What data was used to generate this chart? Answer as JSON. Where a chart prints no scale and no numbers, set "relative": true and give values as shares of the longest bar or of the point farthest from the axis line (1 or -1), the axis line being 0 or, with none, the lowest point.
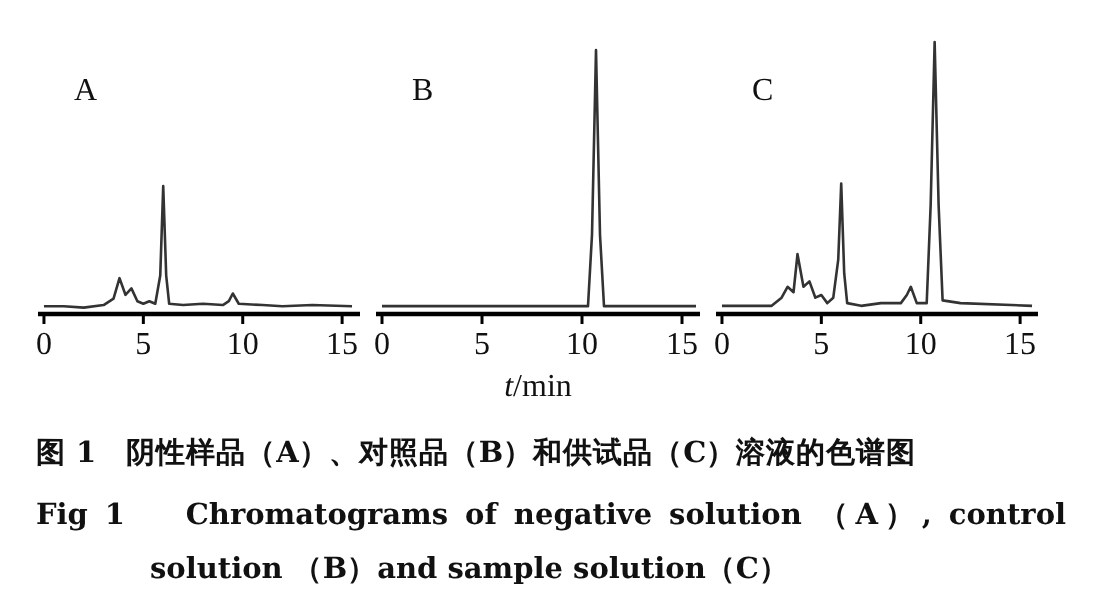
{
  "chart_data": [
    {
      "type": "line",
      "title": "A",
      "relative": true,
      "xlim": [
        -0.3,
        15.9
      ],
      "xticks": [
        0,
        5,
        10,
        15
      ],
      "tick_labels": "x",
      "series": [
        {
          "color": "#333333",
          "x": [
            0,
            1,
            2,
            3,
            3.5,
            3.8,
            4.1,
            4.4,
            4.7,
            5,
            5.3,
            5.6,
            5.85,
            6.0,
            6.15,
            6.3,
            7,
            8,
            9,
            9.3,
            9.5,
            9.8,
            11,
            12,
            13.5,
            15.5
          ],
          "values": [
            0.06,
            0.06,
            0.05,
            0.07,
            0.12,
            0.28,
            0.15,
            0.2,
            0.1,
            0.08,
            0.1,
            0.08,
            0.3,
            1.0,
            0.3,
            0.08,
            0.07,
            0.08,
            0.07,
            0.1,
            0.16,
            0.08,
            0.07,
            0.06,
            0.07,
            0.06
          ]
        }
      ],
      "annotations": [
        "图 1　阴性样品（A）、对照品（B）和供试品（C）溶液的色谱图",
        "Fig 1　 Chromatograms of negative solution （A）, control solution （B）and sample solution（C）"
      ]
    },
    {
      "type": "line",
      "title": "B",
      "relative": true,
      "xlim": [
        -0.3,
        15.9
      ],
      "xticks": [
        0,
        5,
        10,
        15
      ],
      "tick_labels": "x",
      "xlabel": "*t*/min",
      "series": [
        {
          "color": "#333333",
          "x": [
            0,
            4,
            7,
            10.3,
            10.5,
            10.7,
            10.9,
            11.1,
            15.7
          ],
          "values": [
            0.03,
            0.03,
            0.03,
            0.03,
            0.3,
            1.0,
            0.3,
            0.03,
            0.03
          ]
        }
      ]
    },
    {
      "type": "line",
      "title": "C",
      "relative": true,
      "xlim": [
        -0.3,
        15.9
      ],
      "xticks": [
        0,
        5,
        10,
        15
      ],
      "tick_labels": "x",
      "series": [
        {
          "color": "#333333",
          "x": [
            0,
            2.5,
            3,
            3.3,
            3.6,
            3.8,
            4.1,
            4.4,
            4.7,
            5,
            5.3,
            5.6,
            5.85,
            6.0,
            6.15,
            6.3,
            7,
            8,
            9,
            9.3,
            9.5,
            9.8,
            10.3,
            10.5,
            10.7,
            10.9,
            11.1,
            12,
            15.6
          ],
          "values": [
            0.03,
            0.03,
            0.06,
            0.1,
            0.08,
            0.22,
            0.1,
            0.12,
            0.06,
            0.07,
            0.04,
            0.06,
            0.2,
            0.48,
            0.15,
            0.04,
            0.03,
            0.04,
            0.04,
            0.07,
            0.1,
            0.04,
            0.04,
            0.4,
            1.0,
            0.4,
            0.05,
            0.04,
            0.03
          ]
        }
      ]
    }
  ]
}
